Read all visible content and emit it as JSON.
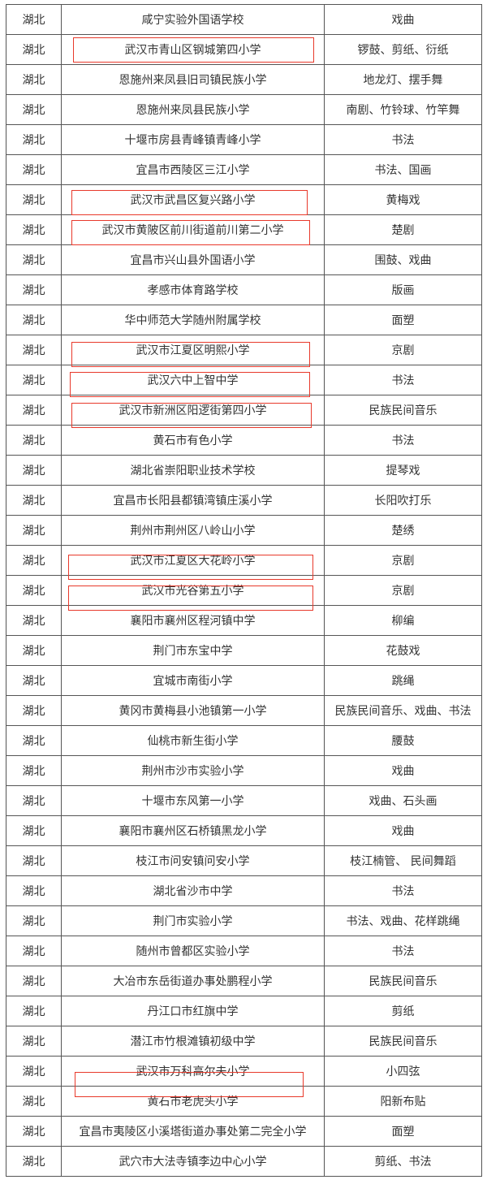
{
  "highlight_color": "#e8392b",
  "rows": [
    [
      "湖北",
      "咸宁实验外国语学校",
      "戏曲"
    ],
    [
      "湖北",
      "武汉市青山区钢城第四小学",
      "锣鼓、剪纸、衍纸"
    ],
    [
      "湖北",
      "恩施州来凤县旧司镇民族小学",
      "地龙灯、摆手舞"
    ],
    [
      "湖北",
      "恩施州来凤县民族小学",
      "南剧、竹铃球、竹竿舞"
    ],
    [
      "湖北",
      "十堰市房县青峰镇青峰小学",
      "书法"
    ],
    [
      "湖北",
      "宜昌市西陵区三江小学",
      "书法、国画"
    ],
    [
      "湖北",
      "武汉市武昌区复兴路小学",
      "黄梅戏"
    ],
    [
      "湖北",
      "武汉市黄陂区前川街道前川第二小学",
      "楚剧"
    ],
    [
      "湖北",
      "宜昌市兴山县外国语小学",
      "围鼓、戏曲"
    ],
    [
      "湖北",
      "孝感市体育路学校",
      "版画"
    ],
    [
      "湖北",
      "华中师范大学随州附属学校",
      "面塑"
    ],
    [
      "湖北",
      "武汉市江夏区明熙小学",
      "京剧"
    ],
    [
      "湖北",
      "武汉六中上智中学",
      "书法"
    ],
    [
      "湖北",
      "武汉市新洲区阳逻街第四小学",
      "民族民间音乐"
    ],
    [
      "湖北",
      "黄石市有色小学",
      "书法"
    ],
    [
      "湖北",
      "湖北省崇阳职业技术学校",
      "提琴戏"
    ],
    [
      "湖北",
      "宜昌市长阳县都镇湾镇庄溪小学",
      "长阳吹打乐"
    ],
    [
      "湖北",
      "荆州市荆州区八岭山小学",
      "楚绣"
    ],
    [
      "湖北",
      "武汉市江夏区大花岭小学",
      "京剧"
    ],
    [
      "湖北",
      "武汉市光谷第五小学",
      "京剧"
    ],
    [
      "湖北",
      "襄阳市襄州区程河镇中学",
      "柳编"
    ],
    [
      "湖北",
      "荆门市东宝中学",
      "花鼓戏"
    ],
    [
      "湖北",
      "宜城市南街小学",
      "跳绳"
    ],
    [
      "湖北",
      "黄冈市黄梅县小池镇第一小学",
      "民族民间音乐、戏曲、书法"
    ],
    [
      "湖北",
      "仙桃市新生街小学",
      "腰鼓"
    ],
    [
      "湖北",
      "荆州市沙市实验小学",
      "戏曲"
    ],
    [
      "湖北",
      "十堰市东风第一小学",
      "戏曲、石头画"
    ],
    [
      "湖北",
      "襄阳市襄州区石桥镇黑龙小学",
      "戏曲"
    ],
    [
      "湖北",
      "枝江市问安镇问安小学",
      "枝江楠管、 民间舞蹈"
    ],
    [
      "湖北",
      "湖北省沙市中学",
      "书法"
    ],
    [
      "湖北",
      "荆门市实验小学",
      "书法、戏曲、花样跳绳"
    ],
    [
      "湖北",
      "随州市曾都区实验小学",
      "书法"
    ],
    [
      "湖北",
      "大冶市东岳街道办事处鹏程小学",
      "民族民间音乐"
    ],
    [
      "湖北",
      "丹江口市红旗中学",
      "剪纸"
    ],
    [
      "湖北",
      "潜江市竹根滩镇初级中学",
      "民族民间音乐"
    ],
    [
      "湖北",
      "武汉市万科高尔夫小学",
      "小四弦"
    ],
    [
      "湖北",
      "黄石市老虎头小学",
      "阳新布贴"
    ],
    [
      "湖北",
      "宜昌市夷陵区小溪塔街道办事处第二完全小学",
      "面塑"
    ],
    [
      "湖北",
      "武穴市大法寺镇李边中心小学",
      "剪纸、书法"
    ]
  ],
  "highlighted_rows": [
    2,
    7,
    8,
    12,
    13,
    14,
    19,
    20,
    36
  ]
}
